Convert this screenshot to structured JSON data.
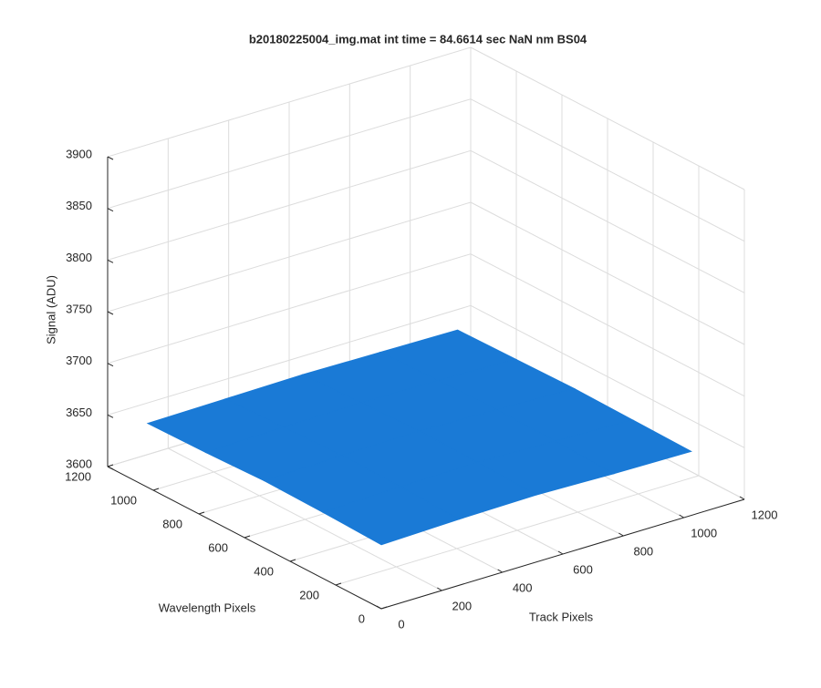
{
  "chart_data": {
    "type": "surface",
    "title": "b20180225004_img.mat int time = 84.6614 sec  NaN nm BS04",
    "xlabel": "Track Pixels",
    "ylabel": "Wavelength Pixels",
    "zlabel": "Signal (ADU)",
    "x": [
      0,
      256,
      512,
      768,
      1024
    ],
    "y": [
      0,
      256,
      512,
      768,
      1024
    ],
    "z": [
      [
        3662,
        3664,
        3665,
        3663,
        3662
      ],
      [
        3664,
        3666,
        3667,
        3665,
        3663
      ],
      [
        3665,
        3667,
        3668,
        3666,
        3664
      ],
      [
        3663,
        3665,
        3666,
        3665,
        3663
      ],
      [
        3662,
        3663,
        3664,
        3663,
        3662
      ]
    ],
    "color": "#1a7ad6",
    "xlim": [
      0,
      1200
    ],
    "ylim": [
      0,
      1200
    ],
    "zlim": [
      3600,
      3900
    ],
    "xticks": [
      0,
      200,
      400,
      600,
      800,
      1000,
      1200
    ],
    "yticks": [
      0,
      200,
      400,
      600,
      800,
      1000,
      1200
    ],
    "zticks": [
      3600,
      3650,
      3700,
      3750,
      3800,
      3850,
      3900
    ],
    "grid": true
  }
}
